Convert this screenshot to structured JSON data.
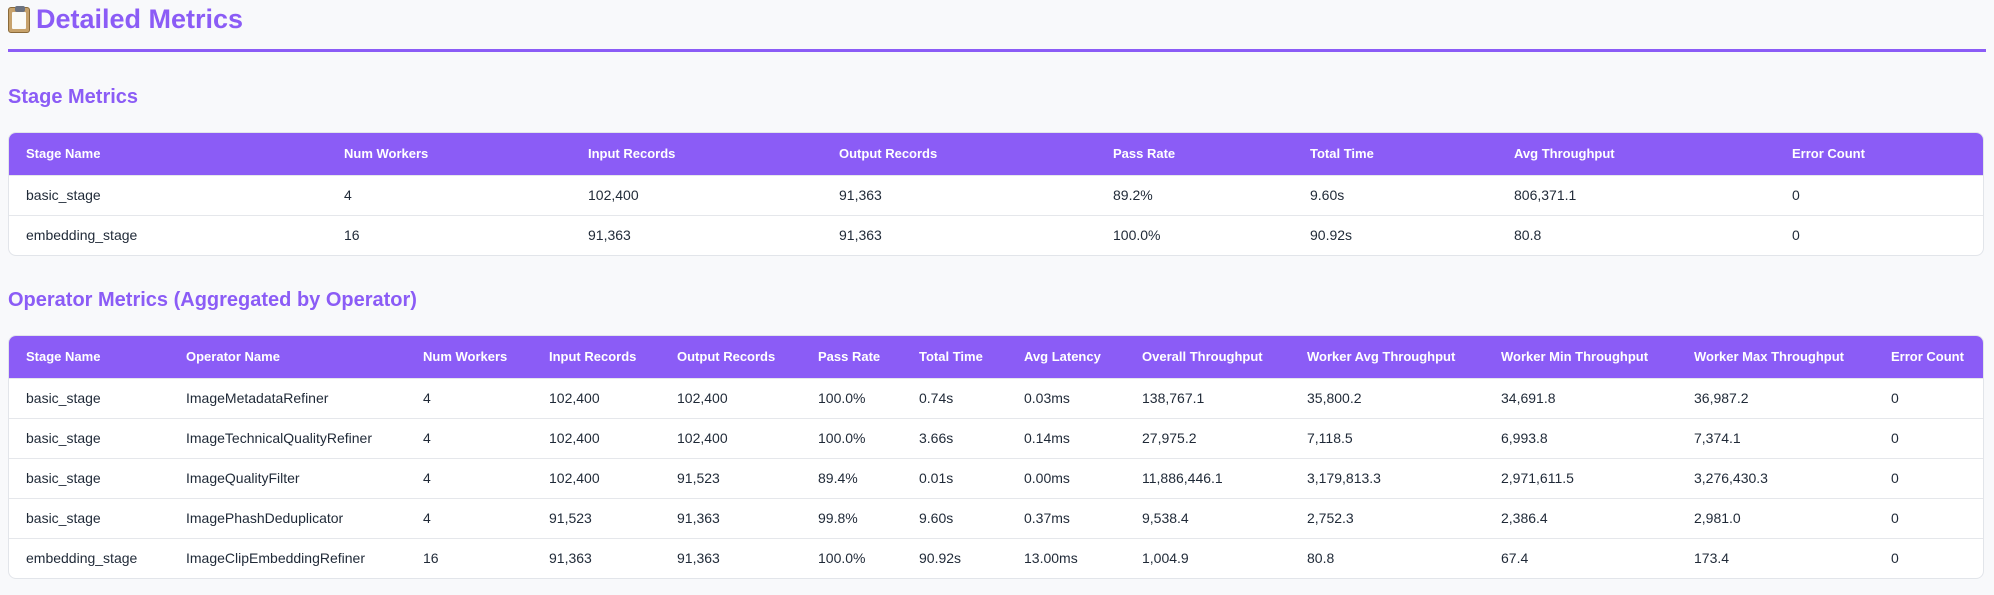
{
  "page": {
    "title_icon": "clipboard-icon",
    "title": "Detailed Metrics"
  },
  "stage_metrics": {
    "title": "Stage Metrics",
    "columns": [
      "Stage Name",
      "Num Workers",
      "Input Records",
      "Output Records",
      "Pass Rate",
      "Total Time",
      "Avg Throughput",
      "Error Count"
    ],
    "rows": [
      [
        "basic_stage",
        "4",
        "102,400",
        "91,363",
        "89.2%",
        "9.60s",
        "806,371.1",
        "0"
      ],
      [
        "embedding_stage",
        "16",
        "91,363",
        "91,363",
        "100.0%",
        "90.92s",
        "80.8",
        "0"
      ]
    ]
  },
  "operator_metrics": {
    "title": "Operator Metrics (Aggregated by Operator)",
    "columns": [
      "Stage Name",
      "Operator Name",
      "Num Workers",
      "Input Records",
      "Output Records",
      "Pass Rate",
      "Total Time",
      "Avg Latency",
      "Overall Throughput",
      "Worker Avg Throughput",
      "Worker Min Throughput",
      "Worker Max Throughput",
      "Error Count"
    ],
    "rows": [
      [
        "basic_stage",
        "ImageMetadataRefiner",
        "4",
        "102,400",
        "102,400",
        "100.0%",
        "0.74s",
        "0.03ms",
        "138,767.1",
        "35,800.2",
        "34,691.8",
        "36,987.2",
        "0"
      ],
      [
        "basic_stage",
        "ImageTechnicalQualityRefiner",
        "4",
        "102,400",
        "102,400",
        "100.0%",
        "3.66s",
        "0.14ms",
        "27,975.2",
        "7,118.5",
        "6,993.8",
        "7,374.1",
        "0"
      ],
      [
        "basic_stage",
        "ImageQualityFilter",
        "4",
        "102,400",
        "91,523",
        "89.4%",
        "0.01s",
        "0.00ms",
        "11,886,446.1",
        "3,179,813.3",
        "2,971,611.5",
        "3,276,430.3",
        "0"
      ],
      [
        "basic_stage",
        "ImagePhashDeduplicator",
        "4",
        "91,523",
        "91,363",
        "99.8%",
        "9.60s",
        "0.37ms",
        "9,538.4",
        "2,752.3",
        "2,386.4",
        "2,981.0",
        "0"
      ],
      [
        "embedding_stage",
        "ImageClipEmbeddingRefiner",
        "16",
        "91,363",
        "91,363",
        "100.0%",
        "90.92s",
        "13.00ms",
        "1,004.9",
        "80.8",
        "67.4",
        "173.4",
        "0"
      ]
    ]
  }
}
